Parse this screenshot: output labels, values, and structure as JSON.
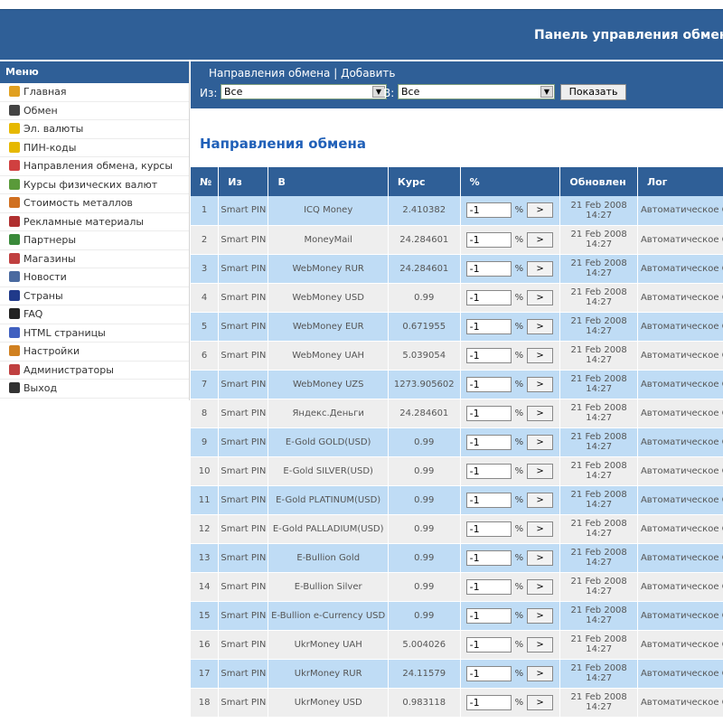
{
  "header": {
    "title": "Панель управления обмен"
  },
  "sidebar": {
    "title": "Меню",
    "items": [
      {
        "label": "Главная",
        "icon": "home-icon",
        "color": "#e0a020"
      },
      {
        "label": "Обмен",
        "icon": "list-icon",
        "color": "#444444"
      },
      {
        "label": "Эл. валюты",
        "icon": "coin-icon",
        "color": "#e6b800"
      },
      {
        "label": "ПИН-коды",
        "icon": "coin-icon",
        "color": "#e6b800"
      },
      {
        "label": "Направления обмена, курсы",
        "icon": "directions-icon",
        "color": "#d04040"
      },
      {
        "label": "Курсы физических валют",
        "icon": "currency-icon",
        "color": "#5a9a3a"
      },
      {
        "label": "Стоимость металлов",
        "icon": "box-icon",
        "color": "#d07020"
      },
      {
        "label": "Рекламные материалы",
        "icon": "ad-icon",
        "color": "#b03030"
      },
      {
        "label": "Партнеры",
        "icon": "partners-icon",
        "color": "#3a8a3a"
      },
      {
        "label": "Магазины",
        "icon": "shop-icon",
        "color": "#c04040"
      },
      {
        "label": "Новости",
        "icon": "tv-icon",
        "color": "#4a6aa0"
      },
      {
        "label": "Страны",
        "icon": "flag-icon",
        "color": "#203a8a"
      },
      {
        "label": "FAQ",
        "icon": "faq-icon",
        "color": "#222222"
      },
      {
        "label": "HTML страницы",
        "icon": "html-icon",
        "color": "#4060c0"
      },
      {
        "label": "Настройки",
        "icon": "settings-icon",
        "color": "#d08020"
      },
      {
        "label": "Администраторы",
        "icon": "admins-icon",
        "color": "#c04040"
      },
      {
        "label": "Выход",
        "icon": "exit-icon",
        "color": "#333333"
      }
    ]
  },
  "filter": {
    "link_directions": "Направления обмена",
    "separator": "|",
    "link_add": "Добавить",
    "from_label": "Из:",
    "from_value": "Все",
    "to_label": "В:",
    "to_value": "Все",
    "show_button": "Показать"
  },
  "main": {
    "heading": "Направления обмена"
  },
  "table": {
    "headers": [
      "№",
      "Из",
      "В",
      "Курс",
      "%",
      "Обновлен",
      "Лог"
    ],
    "pct_sign": "%",
    "go_label": ">",
    "rows": [
      {
        "n": "1",
        "from": "Smart PIN",
        "to": "ICQ Money",
        "rate": "2.410382",
        "pct": "-1",
        "updated": "21 Feb 2008 14:27",
        "log": "Автоматическое CRON"
      },
      {
        "n": "2",
        "from": "Smart PIN",
        "to": "MoneyMail",
        "rate": "24.284601",
        "pct": "-1",
        "updated": "21 Feb 2008 14:27",
        "log": "Автоматическое CRON"
      },
      {
        "n": "3",
        "from": "Smart PIN",
        "to": "WebMoney RUR",
        "rate": "24.284601",
        "pct": "-1",
        "updated": "21 Feb 2008 14:27",
        "log": "Автоматическое CRON"
      },
      {
        "n": "4",
        "from": "Smart PIN",
        "to": "WebMoney USD",
        "rate": "0.99",
        "pct": "-1",
        "updated": "21 Feb 2008 14:27",
        "log": "Автоматическое CRON"
      },
      {
        "n": "5",
        "from": "Smart PIN",
        "to": "WebMoney EUR",
        "rate": "0.671955",
        "pct": "-1",
        "updated": "21 Feb 2008 14:27",
        "log": "Автоматическое CRON"
      },
      {
        "n": "6",
        "from": "Smart PIN",
        "to": "WebMoney UAH",
        "rate": "5.039054",
        "pct": "-1",
        "updated": "21 Feb 2008 14:27",
        "log": "Автоматическое CRON"
      },
      {
        "n": "7",
        "from": "Smart PIN",
        "to": "WebMoney UZS",
        "rate": "1273.905602",
        "pct": "-1",
        "updated": "21 Feb 2008 14:27",
        "log": "Автоматическое CRON"
      },
      {
        "n": "8",
        "from": "Smart PIN",
        "to": "Яндекс.Деньги",
        "rate": "24.284601",
        "pct": "-1",
        "updated": "21 Feb 2008 14:27",
        "log": "Автоматическое CRON"
      },
      {
        "n": "9",
        "from": "Smart PIN",
        "to": "E-Gold GOLD(USD)",
        "rate": "0.99",
        "pct": "-1",
        "updated": "21 Feb 2008 14:27",
        "log": "Автоматическое CRON"
      },
      {
        "n": "10",
        "from": "Smart PIN",
        "to": "E-Gold SILVER(USD)",
        "rate": "0.99",
        "pct": "-1",
        "updated": "21 Feb 2008 14:27",
        "log": "Автоматическое CRON"
      },
      {
        "n": "11",
        "from": "Smart PIN",
        "to": "E-Gold PLATINUM(USD)",
        "rate": "0.99",
        "pct": "-1",
        "updated": "21 Feb 2008 14:27",
        "log": "Автоматическое CRON"
      },
      {
        "n": "12",
        "from": "Smart PIN",
        "to": "E-Gold PALLADIUM(USD)",
        "rate": "0.99",
        "pct": "-1",
        "updated": "21 Feb 2008 14:27",
        "log": "Автоматическое CRON"
      },
      {
        "n": "13",
        "from": "Smart PIN",
        "to": "E-Bullion Gold",
        "rate": "0.99",
        "pct": "-1",
        "updated": "21 Feb 2008 14:27",
        "log": "Автоматическое CRON"
      },
      {
        "n": "14",
        "from": "Smart PIN",
        "to": "E-Bullion Silver",
        "rate": "0.99",
        "pct": "-1",
        "updated": "21 Feb 2008 14:27",
        "log": "Автоматическое CRON"
      },
      {
        "n": "15",
        "from": "Smart PIN",
        "to": "E-Bullion e-Currency USD",
        "rate": "0.99",
        "pct": "-1",
        "updated": "21 Feb 2008 14:27",
        "log": "Автоматическое CRON"
      },
      {
        "n": "16",
        "from": "Smart PIN",
        "to": "UkrMoney UAH",
        "rate": "5.004026",
        "pct": "-1",
        "updated": "21 Feb 2008 14:27",
        "log": "Автоматическое CRON"
      },
      {
        "n": "17",
        "from": "Smart PIN",
        "to": "UkrMoney RUR",
        "rate": "24.11579",
        "pct": "-1",
        "updated": "21 Feb 2008 14:27",
        "log": "Автоматическое CRON"
      },
      {
        "n": "18",
        "from": "Smart PIN",
        "to": "UkrMoney USD",
        "rate": "0.983118",
        "pct": "-1",
        "updated": "21 Feb 2008 14:27",
        "log": "Автоматическое CRON"
      }
    ]
  }
}
